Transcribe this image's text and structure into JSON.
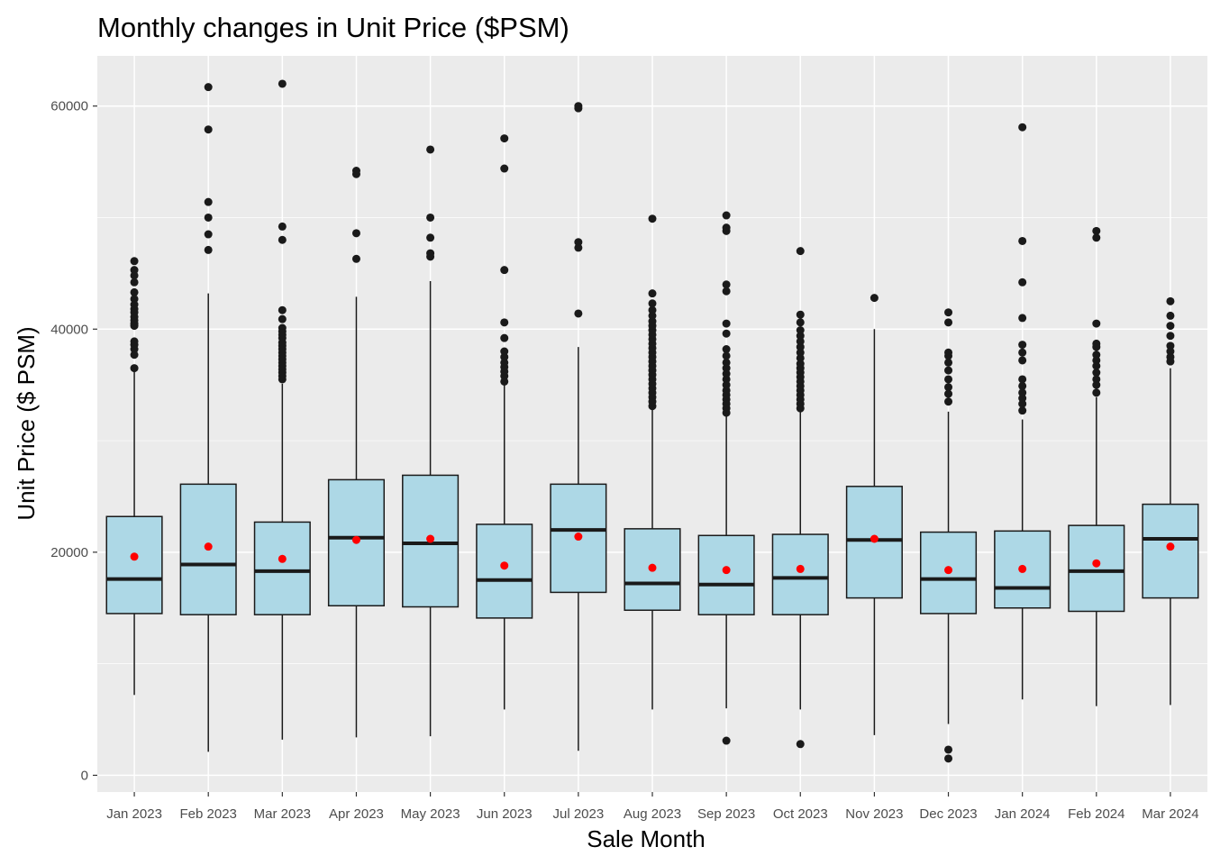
{
  "chart_data": {
    "type": "boxplot",
    "title": "Monthly changes in Unit Price ($PSM)",
    "xlabel": "Sale Month",
    "ylabel": "Unit Price ($ PSM)",
    "ylim": [
      -1500,
      64500
    ],
    "yticks": [
      0,
      20000,
      40000,
      60000
    ],
    "grid": true,
    "colors": {
      "panel": "#EBEBEB",
      "grid": "#FFFFFF",
      "box_fill": "#ADD8E6",
      "box_stroke": "#1A1A1A",
      "mean_point": "#FF0000",
      "outlier": "#1A1A1A"
    },
    "categories": [
      "Jan 2023",
      "Feb 2023",
      "Mar 2023",
      "Apr 2023",
      "May 2023",
      "Jun 2023",
      "Jul 2023",
      "Aug 2023",
      "Sep 2023",
      "Oct 2023",
      "Nov 2023",
      "Dec 2023",
      "Jan 2024",
      "Feb 2024",
      "Mar 2024"
    ],
    "boxes": [
      {
        "whisker_low": 7200,
        "q1": 14500,
        "median": 17600,
        "q3": 23200,
        "whisker_high": 36200,
        "mean": 19600,
        "outliers": [
          36500,
          37700,
          38200,
          38600,
          38900,
          40300,
          40500,
          40800,
          41100,
          41500,
          41800,
          42200,
          42700,
          43300,
          44200,
          44800,
          45300,
          46100
        ]
      },
      {
        "whisker_low": 2100,
        "q1": 14400,
        "median": 18900,
        "q3": 26100,
        "whisker_high": 43200,
        "mean": 20500,
        "outliers": [
          47100,
          48500,
          50000,
          51400,
          57900,
          61700
        ]
      },
      {
        "whisker_low": 3200,
        "q1": 14400,
        "median": 18300,
        "q3": 22700,
        "whisker_high": 35100,
        "mean": 19400,
        "outliers": [
          35500,
          35800,
          36100,
          36400,
          36700,
          37000,
          37300,
          37600,
          37900,
          38200,
          38500,
          38800,
          39200,
          39500,
          39800,
          40100,
          40900,
          41700,
          48000,
          49200,
          62000
        ]
      },
      {
        "whisker_low": 3400,
        "q1": 15200,
        "median": 21300,
        "q3": 26500,
        "whisker_high": 42900,
        "mean": 21100,
        "outliers": [
          46300,
          48600,
          53900,
          54200
        ]
      },
      {
        "whisker_low": 3500,
        "q1": 15100,
        "median": 20800,
        "q3": 26900,
        "whisker_high": 44300,
        "mean": 21200,
        "outliers": [
          46500,
          46800,
          48200,
          50000,
          56100
        ]
      },
      {
        "whisker_low": 5900,
        "q1": 14100,
        "median": 17500,
        "q3": 22500,
        "whisker_high": 35000,
        "mean": 18800,
        "outliers": [
          35300,
          35800,
          36200,
          36600,
          37000,
          37500,
          38000,
          39200,
          40600,
          45300,
          54400,
          57100
        ]
      },
      {
        "whisker_low": 2200,
        "q1": 16400,
        "median": 22000,
        "q3": 26100,
        "whisker_high": 38400,
        "mean": 21400,
        "outliers": [
          41400,
          47300,
          47800,
          59800,
          60000
        ]
      },
      {
        "whisker_low": 5900,
        "q1": 14800,
        "median": 17200,
        "q3": 22100,
        "whisker_high": 32800,
        "mean": 18600,
        "outliers": [
          33100,
          33500,
          33900,
          34300,
          34700,
          35100,
          35500,
          35900,
          36300,
          36700,
          37100,
          37500,
          37900,
          38300,
          38700,
          39100,
          39500,
          39900,
          40300,
          40700,
          41200,
          41700,
          42300,
          43200,
          49900
        ]
      },
      {
        "whisker_low": 6000,
        "q1": 14400,
        "median": 17100,
        "q3": 21500,
        "whisker_high": 32200,
        "mean": 18400,
        "outliers": [
          3100,
          32500,
          32900,
          33300,
          33700,
          34100,
          34500,
          35000,
          35500,
          36000,
          36500,
          37000,
          37600,
          38200,
          39600,
          40500,
          43400,
          44000,
          48800,
          49100,
          50200
        ]
      },
      {
        "whisker_low": 5900,
        "q1": 14400,
        "median": 17700,
        "q3": 21600,
        "whisker_high": 32600,
        "mean": 18500,
        "outliers": [
          2800,
          32900,
          33300,
          33700,
          34100,
          34500,
          34900,
          35300,
          35700,
          36100,
          36500,
          36900,
          37400,
          37900,
          38400,
          38900,
          39400,
          39900,
          40600,
          41300,
          47000
        ]
      },
      {
        "whisker_low": 3600,
        "q1": 15900,
        "median": 21100,
        "q3": 25900,
        "whisker_high": 40000,
        "mean": 21200,
        "outliers": [
          42800
        ]
      },
      {
        "whisker_low": 4600,
        "q1": 14500,
        "median": 17600,
        "q3": 21800,
        "whisker_high": 32600,
        "mean": 18400,
        "outliers": [
          1500,
          2300,
          33500,
          34200,
          34800,
          35500,
          36300,
          37000,
          37600,
          37900,
          40600,
          41500
        ]
      },
      {
        "whisker_low": 6800,
        "q1": 15000,
        "median": 16800,
        "q3": 21900,
        "whisker_high": 31900,
        "mean": 18500,
        "outliers": [
          32700,
          33300,
          33800,
          34300,
          34900,
          35500,
          37200,
          37900,
          38600,
          41000,
          44200,
          47900,
          58100
        ]
      },
      {
        "whisker_low": 6200,
        "q1": 14700,
        "median": 18300,
        "q3": 22400,
        "whisker_high": 33900,
        "mean": 19000,
        "outliers": [
          34300,
          35000,
          35500,
          36100,
          36700,
          37200,
          37700,
          38400,
          38700,
          40500,
          48200,
          48800
        ]
      },
      {
        "whisker_low": 6300,
        "q1": 15900,
        "median": 21200,
        "q3": 24300,
        "whisker_high": 36500,
        "mean": 20500,
        "outliers": [
          37100,
          37500,
          38000,
          38500,
          39400,
          40300,
          41200,
          42500
        ]
      }
    ]
  }
}
